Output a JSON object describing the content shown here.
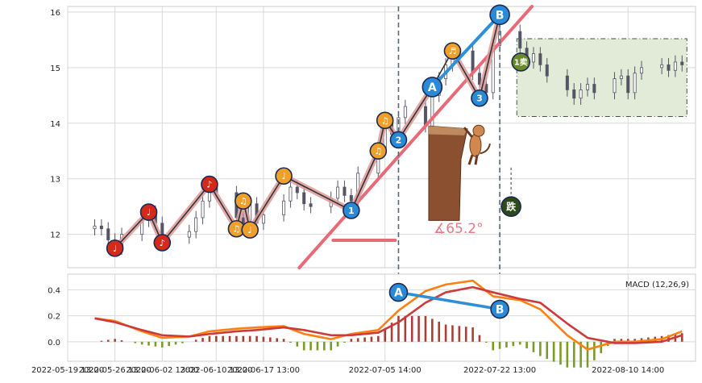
{
  "chart_data": [
    {
      "type": "candlestick",
      "panel": "price",
      "ylim": [
        11.4,
        16.1
      ],
      "y_ticks": [
        12,
        13,
        14,
        15,
        16
      ],
      "grid": true,
      "close_series": [
        [
          "2022-05-23",
          12.15
        ],
        [
          "2022-05-24",
          12.1
        ],
        [
          "2022-05-25",
          11.9
        ],
        [
          "2022-05-26",
          11.75
        ],
        [
          "2022-05-27",
          12.0
        ],
        [
          "2022-05-30",
          12.25
        ],
        [
          "2022-05-31",
          12.4
        ],
        [
          "2022-06-01",
          12.2
        ],
        [
          "2022-06-02",
          11.95
        ],
        [
          "2022-06-06",
          12.05
        ],
        [
          "2022-06-07",
          12.3
        ],
        [
          "2022-06-08",
          12.6
        ],
        [
          "2022-06-09",
          12.85
        ],
        [
          "2022-06-10",
          12.75
        ],
        [
          "2022-06-13",
          12.3
        ],
        [
          "2022-06-14",
          12.2
        ],
        [
          "2022-06-15",
          12.55
        ],
        [
          "2022-06-16",
          12.2
        ],
        [
          "2022-06-17",
          12.35
        ],
        [
          "2022-06-20",
          12.6
        ],
        [
          "2022-06-21",
          12.85
        ],
        [
          "2022-06-22",
          12.75
        ],
        [
          "2022-06-23",
          12.55
        ],
        [
          "2022-06-24",
          12.5
        ],
        [
          "2022-06-27",
          12.65
        ],
        [
          "2022-06-28",
          12.85
        ],
        [
          "2022-06-29",
          12.7
        ],
        [
          "2022-06-30",
          12.6
        ],
        [
          "2022-07-01",
          13.1
        ],
        [
          "2022-07-04",
          13.55
        ],
        [
          "2022-07-05",
          14.05
        ],
        [
          "2022-07-06",
          13.8
        ],
        [
          "2022-07-07",
          14.1
        ],
        [
          "2022-07-08",
          14.3
        ],
        [
          "2022-07-11",
          13.95
        ],
        [
          "2022-07-12",
          14.5
        ],
        [
          "2022-07-13",
          14.8
        ],
        [
          "2022-07-14",
          15.05
        ],
        [
          "2022-07-15",
          15.3
        ],
        [
          "2022-07-18",
          14.9
        ],
        [
          "2022-07-19",
          14.7
        ],
        [
          "2022-07-20",
          14.55
        ],
        [
          "2022-07-21",
          15.4
        ],
        [
          "2022-07-22",
          15.65
        ],
        [
          "2022-07-25",
          15.35
        ],
        [
          "2022-07-26",
          15.1
        ],
        [
          "2022-07-27",
          15.25
        ],
        [
          "2022-07-28",
          15.05
        ],
        [
          "2022-07-29",
          14.85
        ],
        [
          "2022-08-01",
          14.6
        ],
        [
          "2022-08-02",
          14.45
        ],
        [
          "2022-08-03",
          14.6
        ],
        [
          "2022-08-04",
          14.7
        ],
        [
          "2022-08-05",
          14.55
        ],
        [
          "2022-08-08",
          14.8
        ],
        [
          "2022-08-09",
          14.85
        ],
        [
          "2022-08-10",
          14.55
        ],
        [
          "2022-08-11",
          14.9
        ],
        [
          "2022-08-12",
          15.0
        ],
        [
          "2022-08-15",
          15.05
        ],
        [
          "2022-08-16",
          14.95
        ],
        [
          "2022-08-17",
          15.1
        ],
        [
          "2022-08-18",
          15.05
        ]
      ],
      "wave_points": [
        [
          "2022-05-26",
          11.75,
          "♩"
        ],
        [
          "2022-05-31",
          12.4,
          "♩"
        ],
        [
          "2022-06-02",
          11.85,
          "♪"
        ],
        [
          "2022-06-09",
          12.9,
          "♪"
        ],
        [
          "2022-06-13",
          12.1,
          "♫"
        ],
        [
          "2022-06-14",
          12.6,
          "♫"
        ],
        [
          "2022-06-15",
          12.08,
          "♩"
        ],
        [
          "2022-06-20",
          13.05,
          "♩"
        ],
        [
          "2022-06-30",
          12.43,
          "1"
        ],
        [
          "2022-07-04",
          13.5,
          "♫"
        ],
        [
          "2022-07-05",
          14.05,
          "♫"
        ],
        [
          "2022-07-07",
          13.7,
          "2"
        ],
        [
          "2022-07-12",
          14.65,
          "A"
        ],
        [
          "2022-07-15",
          15.3,
          "♬"
        ],
        [
          "2022-07-19",
          14.45,
          "3"
        ],
        [
          "2022-07-22",
          15.95,
          "B"
        ]
      ],
      "trend_line": [
        [
          "2022-06-30",
          12.45
        ],
        [
          "2022-07-22",
          15.45
        ]
      ],
      "angle_label": "∡65.2°",
      "signal_sell": {
        "date": "2022-07-25",
        "price": 15.1,
        "label": "1卖"
      },
      "signal_down": {
        "date": "2022-07-22",
        "price": 12.5,
        "label": "跌"
      },
      "consolidation_box": {
        "from": "2022-07-25",
        "to": "2022-08-18",
        "low": 14.12,
        "high": 15.52
      },
      "markers": [
        "2022-07-07",
        "2022-07-22"
      ]
    },
    {
      "type": "macd",
      "panel": "indicator",
      "legend": "MACD (12,26,9)",
      "ylim": [
        -0.15,
        0.52
      ],
      "y_ticks": [
        0.0,
        0.2,
        0.4
      ],
      "dif": [
        [
          "2022-05-23",
          0.18
        ],
        [
          "2022-05-26",
          0.16
        ],
        [
          "2022-05-30",
          0.08
        ],
        [
          "2022-06-02",
          0.03
        ],
        [
          "2022-06-06",
          0.04
        ],
        [
          "2022-06-09",
          0.08
        ],
        [
          "2022-06-13",
          0.1
        ],
        [
          "2022-06-16",
          0.11
        ],
        [
          "2022-06-20",
          0.12
        ],
        [
          "2022-06-23",
          0.06
        ],
        [
          "2022-06-27",
          0.02
        ],
        [
          "2022-06-30",
          0.06
        ],
        [
          "2022-07-04",
          0.09
        ],
        [
          "2022-07-07",
          0.24
        ],
        [
          "2022-07-11",
          0.39
        ],
        [
          "2022-07-14",
          0.44
        ],
        [
          "2022-07-18",
          0.47
        ],
        [
          "2022-07-21",
          0.35
        ],
        [
          "2022-07-25",
          0.32
        ],
        [
          "2022-07-28",
          0.25
        ],
        [
          "2022-08-01",
          0.05
        ],
        [
          "2022-08-04",
          -0.06
        ],
        [
          "2022-08-08",
          0.0
        ],
        [
          "2022-08-11",
          0.0
        ],
        [
          "2022-08-15",
          0.02
        ],
        [
          "2022-08-18",
          0.08
        ]
      ],
      "dea": [
        [
          "2022-05-23",
          0.18
        ],
        [
          "2022-05-26",
          0.15
        ],
        [
          "2022-05-30",
          0.09
        ],
        [
          "2022-06-02",
          0.05
        ],
        [
          "2022-06-06",
          0.04
        ],
        [
          "2022-06-09",
          0.06
        ],
        [
          "2022-06-13",
          0.08
        ],
        [
          "2022-06-16",
          0.09
        ],
        [
          "2022-06-20",
          0.11
        ],
        [
          "2022-06-23",
          0.09
        ],
        [
          "2022-06-27",
          0.05
        ],
        [
          "2022-06-30",
          0.05
        ],
        [
          "2022-07-04",
          0.07
        ],
        [
          "2022-07-07",
          0.15
        ],
        [
          "2022-07-11",
          0.3
        ],
        [
          "2022-07-14",
          0.38
        ],
        [
          "2022-07-18",
          0.42
        ],
        [
          "2022-07-21",
          0.38
        ],
        [
          "2022-07-25",
          0.33
        ],
        [
          "2022-07-28",
          0.3
        ],
        [
          "2022-08-01",
          0.14
        ],
        [
          "2022-08-04",
          0.03
        ],
        [
          "2022-08-08",
          -0.01
        ],
        [
          "2022-08-11",
          -0.01
        ],
        [
          "2022-08-15",
          0.0
        ],
        [
          "2022-08-18",
          0.05
        ]
      ],
      "points": [
        [
          "2022-07-07",
          0.38,
          "A"
        ],
        [
          "2022-07-22",
          0.25,
          "B"
        ]
      ]
    }
  ],
  "x_axis": {
    "range": [
      "2022-05-19",
      "2022-08-20"
    ],
    "tick_labels": [
      [
        "2022-05-19",
        "2022-05-19 13:00"
      ],
      [
        "2022-05-26",
        "2022-05-26 13:00"
      ],
      [
        "2022-06-02",
        "2022-06-02 13:00"
      ],
      [
        "2022-06-10",
        "2022-06-10 13:00"
      ],
      [
        "2022-06-17",
        "2022-06-17 13:00"
      ],
      [
        "2022-07-05",
        "2022-07-05 14:00"
      ],
      [
        "2022-07-22",
        "2022-07-22 13:00"
      ],
      [
        "2022-08-10",
        "2022-08-10 14:00"
      ]
    ]
  },
  "colors": {
    "grid": "#d9d9d9",
    "frame": "#cccccc",
    "candle": "#555566",
    "wave_fill": "#dd9a9a",
    "wave_line": "#333333",
    "trend": "#e86a77",
    "ab_line": "#2e8fd6",
    "dashed": "#556677",
    "dif": "#ff8010",
    "dea": "#cc3a3a",
    "hist_pos": "#a84036",
    "hist_neg": "#7a9a2a",
    "box_fill": "#e2ead8",
    "dog": "#8a5030"
  }
}
